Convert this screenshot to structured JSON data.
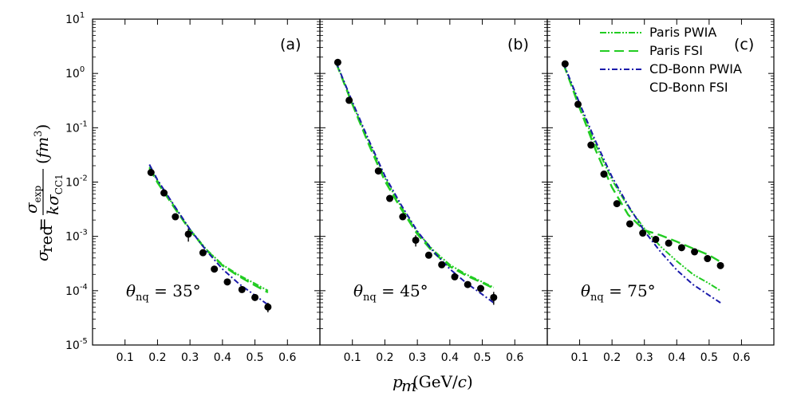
{
  "chart_data": {
    "type": "line",
    "title": "",
    "xlabel": "p_m(GeV/c)",
    "ylabel": "σ_red = σ_exp / (k σ_CC1) (fm^3)",
    "y_scale": "log",
    "ylim": [
      1e-05,
      10
    ],
    "y_tick_labels": [
      {
        "base": "10",
        "exp": "1",
        "value": 10
      },
      {
        "base": "10",
        "exp": "0",
        "value": 1
      },
      {
        "base": "10",
        "exp": "-1",
        "value": 0.1
      },
      {
        "base": "10",
        "exp": "-2",
        "value": 0.01
      },
      {
        "base": "10",
        "exp": "-3",
        "value": 0.001
      },
      {
        "base": "10",
        "exp": "-4",
        "value": 0.0001
      },
      {
        "base": "10",
        "exp": "-5",
        "value": 1e-05
      }
    ],
    "xlim": [
      0.0,
      0.7
    ],
    "x_ticks": [
      0.1,
      0.2,
      0.3,
      0.4,
      0.5,
      0.6
    ],
    "x_tick_labels": [
      "0.1",
      "0.2",
      "0.3",
      "0.4",
      "0.5",
      "0.6"
    ],
    "legend": {
      "position": "top-right of panel (c)",
      "entries": [
        {
          "label": "Paris PWIA",
          "color": "#22cc22",
          "style": "dashdotdot"
        },
        {
          "label": "Paris FSI",
          "color": "#22cc22",
          "style": "dash"
        },
        {
          "label": "CD-Bonn PWIA",
          "color": "#1a1aaa",
          "style": "dashdot"
        },
        {
          "label": "CD-Bonn FSI",
          "color": "#1a1aaa",
          "style": "none"
        }
      ]
    },
    "panels": [
      {
        "label": "(a)",
        "theta_base": "θ",
        "theta_sub": "nq",
        "theta_value": " = 35°",
        "data": [
          {
            "x": 0.18,
            "y": 0.015,
            "err": 0.0
          },
          {
            "x": 0.22,
            "y": 0.0063,
            "err": 0.0
          },
          {
            "x": 0.255,
            "y": 0.0023,
            "err": 0.0
          },
          {
            "x": 0.295,
            "y": 0.0011,
            "err": 0.0003
          },
          {
            "x": 0.34,
            "y": 0.0005,
            "err": 0.0
          },
          {
            "x": 0.375,
            "y": 0.00025,
            "err": 0.0
          },
          {
            "x": 0.415,
            "y": 0.000145,
            "err": 0.0
          },
          {
            "x": 0.46,
            "y": 0.000105,
            "err": 0.0
          },
          {
            "x": 0.5,
            "y": 7.5e-05,
            "err": 0.0
          },
          {
            "x": 0.54,
            "y": 5e-05,
            "err": 1e-05
          }
        ],
        "series": [
          {
            "name": "Paris PWIA",
            "x": [
              0.175,
              0.2,
              0.25,
              0.3,
              0.35,
              0.4,
              0.45,
              0.5,
              0.54
            ],
            "y": [
              0.019,
              0.0105,
              0.0037,
              0.00135,
              0.00058,
              0.0003,
              0.000195,
              0.000135,
              0.0001
            ]
          },
          {
            "name": "Paris FSI",
            "x": [
              0.175,
              0.2,
              0.25,
              0.3,
              0.35,
              0.4,
              0.45,
              0.5,
              0.54
            ],
            "y": [
              0.018,
              0.0098,
              0.0035,
              0.0013,
              0.00056,
              0.00029,
              0.000185,
              0.000125,
              9.3e-05
            ]
          },
          {
            "name": "CD-Bonn PWIA",
            "x": [
              0.175,
              0.2,
              0.25,
              0.3,
              0.35,
              0.4,
              0.45,
              0.5,
              0.54
            ],
            "y": [
              0.021,
              0.011,
              0.0038,
              0.00135,
              0.00055,
              0.00025,
              0.000135,
              8.2e-05,
              5.5e-05
            ]
          }
        ]
      },
      {
        "label": "(b)",
        "theta_base": "θ",
        "theta_sub": "nq",
        "theta_value": " = 45°",
        "data": [
          {
            "x": 0.055,
            "y": 1.6,
            "err": 0.0
          },
          {
            "x": 0.09,
            "y": 0.32,
            "err": 0.0
          },
          {
            "x": 0.18,
            "y": 0.016,
            "err": 0.0
          },
          {
            "x": 0.215,
            "y": 0.005,
            "err": 0.0
          },
          {
            "x": 0.255,
            "y": 0.0023,
            "err": 0.0
          },
          {
            "x": 0.295,
            "y": 0.00085,
            "err": 0.0002
          },
          {
            "x": 0.335,
            "y": 0.00045,
            "err": 0.0
          },
          {
            "x": 0.375,
            "y": 0.0003,
            "err": 0.0
          },
          {
            "x": 0.415,
            "y": 0.00018,
            "err": 0.0
          },
          {
            "x": 0.455,
            "y": 0.00013,
            "err": 0.0
          },
          {
            "x": 0.495,
            "y": 0.00011,
            "err": 0.0
          },
          {
            "x": 0.535,
            "y": 7.5e-05,
            "err": 2e-05
          }
        ],
        "series": [
          {
            "name": "Paris PWIA",
            "x": [
              0.05,
              0.1,
              0.15,
              0.2,
              0.25,
              0.3,
              0.35,
              0.4,
              0.45,
              0.5,
              0.535
            ],
            "y": [
              1.6,
              0.28,
              0.055,
              0.012,
              0.0035,
              0.0012,
              0.00055,
              0.0003,
              0.0002,
              0.000145,
              0.000115
            ]
          },
          {
            "name": "Paris FSI",
            "x": [
              0.05,
              0.1,
              0.15,
              0.2,
              0.25,
              0.3,
              0.35,
              0.4,
              0.45,
              0.5,
              0.535
            ],
            "y": [
              1.55,
              0.27,
              0.05,
              0.0105,
              0.0032,
              0.0011,
              0.0005,
              0.00028,
              0.00019,
              0.00014,
              0.00011
            ]
          },
          {
            "name": "CD-Bonn PWIA",
            "x": [
              0.05,
              0.1,
              0.15,
              0.2,
              0.25,
              0.3,
              0.35,
              0.4,
              0.45,
              0.5,
              0.535
            ],
            "y": [
              1.6,
              0.3,
              0.06,
              0.013,
              0.0038,
              0.00125,
              0.00052,
              0.00025,
              0.00014,
              8.5e-05,
              6e-05
            ]
          }
        ]
      },
      {
        "label": "(c)",
        "theta_base": "θ",
        "theta_sub": "nq",
        "theta_value": " = 75°",
        "data": [
          {
            "x": 0.055,
            "y": 1.5,
            "err": 0.0
          },
          {
            "x": 0.095,
            "y": 0.27,
            "err": 0.0
          },
          {
            "x": 0.135,
            "y": 0.048,
            "err": 0.0
          },
          {
            "x": 0.175,
            "y": 0.014,
            "err": 0.0
          },
          {
            "x": 0.215,
            "y": 0.004,
            "err": 0.0
          },
          {
            "x": 0.255,
            "y": 0.0017,
            "err": 0.0
          },
          {
            "x": 0.295,
            "y": 0.00115,
            "err": 0.0
          },
          {
            "x": 0.335,
            "y": 0.00088,
            "err": 0.0
          },
          {
            "x": 0.375,
            "y": 0.00075,
            "err": 0.0
          },
          {
            "x": 0.415,
            "y": 0.00062,
            "err": 0.0
          },
          {
            "x": 0.455,
            "y": 0.00052,
            "err": 0.0
          },
          {
            "x": 0.495,
            "y": 0.00039,
            "err": 0.0
          },
          {
            "x": 0.535,
            "y": 0.00029,
            "err": 0.0
          }
        ],
        "series": [
          {
            "name": "Paris PWIA",
            "x": [
              0.05,
              0.1,
              0.15,
              0.2,
              0.25,
              0.3,
              0.35,
              0.4,
              0.45,
              0.5,
              0.535
            ],
            "y": [
              1.5,
              0.25,
              0.048,
              0.011,
              0.0035,
              0.0014,
              0.00065,
              0.00035,
              0.0002,
              0.000135,
              0.0001
            ]
          },
          {
            "name": "Paris FSI",
            "x": [
              0.05,
              0.1,
              0.15,
              0.2,
              0.25,
              0.3,
              0.35,
              0.4,
              0.45,
              0.5,
              0.535
            ],
            "y": [
              1.5,
              0.23,
              0.038,
              0.008,
              0.0025,
              0.0013,
              0.00105,
              0.0008,
              0.0006,
              0.00045,
              0.00034
            ]
          },
          {
            "name": "CD-Bonn PWIA",
            "x": [
              0.05,
              0.1,
              0.15,
              0.2,
              0.25,
              0.3,
              0.35,
              0.4,
              0.45,
              0.5,
              0.535
            ],
            "y": [
              1.55,
              0.28,
              0.055,
              0.0125,
              0.0037,
              0.00125,
              0.00052,
              0.00024,
              0.00013,
              8.2e-05,
              6e-05
            ]
          }
        ]
      }
    ]
  },
  "colors": {
    "paris": "#22cc22",
    "bonn": "#1a1aaa",
    "point": "#000000"
  }
}
